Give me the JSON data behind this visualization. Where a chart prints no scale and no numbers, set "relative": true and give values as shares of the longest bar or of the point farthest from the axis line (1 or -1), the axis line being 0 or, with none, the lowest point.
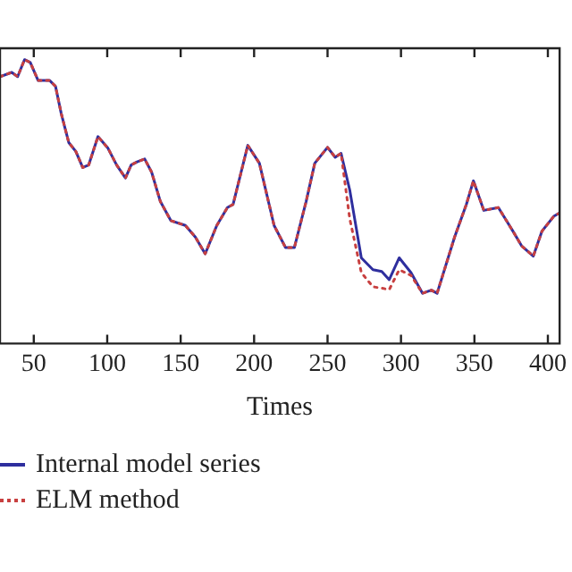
{
  "chart_data": {
    "type": "line",
    "xlabel": "Times",
    "relative": true,
    "legend": "bottom left",
    "marker": "none",
    "grid": false,
    "xlim": [
      27,
      408
    ],
    "xticks": [
      50,
      100,
      150,
      200,
      250,
      300,
      350,
      400
    ],
    "x": [
      27,
      35,
      39,
      43.7,
      47.6,
      52.9,
      60.7,
      64.8,
      68.7,
      73.8,
      78.6,
      83.3,
      87.4,
      93.7,
      100.5,
      106.4,
      112.4,
      116.3,
      120.3,
      125.5,
      130.2,
      136.2,
      143.3,
      153.2,
      160,
      166.7,
      174.6,
      181.8,
      185.7,
      195.7,
      203.6,
      213.6,
      221.4,
      227.4,
      235.4,
      241.3,
      250,
      255.2,
      259.2,
      265.1,
      273,
      280.9,
      286.9,
      292,
      298.8,
      306.8,
      314.7,
      320.7,
      324.6,
      336.5,
      344.5,
      349.3,
      356.4,
      366.3,
      376.2,
      382.1,
      390.1,
      396,
      404,
      408
    ],
    "series": [
      {
        "name": "Internal model series",
        "color": "#2e2e9e",
        "line_style": "solid",
        "values": [
          0.94,
          0.955,
          0.94,
          1.0,
          0.99,
          0.927,
          0.927,
          0.906,
          0.81,
          0.708,
          0.677,
          0.62,
          0.629,
          0.729,
          0.688,
          0.629,
          0.583,
          0.629,
          0.64,
          0.65,
          0.604,
          0.5,
          0.433,
          0.416,
          0.375,
          0.316,
          0.416,
          0.479,
          0.49,
          0.698,
          0.635,
          0.416,
          0.338,
          0.338,
          0.5,
          0.635,
          0.691,
          0.656,
          0.67,
          0.541,
          0.302,
          0.26,
          0.254,
          0.225,
          0.302,
          0.25,
          0.177,
          0.188,
          0.177,
          0.375,
          0.49,
          0.573,
          0.469,
          0.479,
          0.396,
          0.344,
          0.308,
          0.396,
          0.448,
          0.46
        ]
      },
      {
        "name": "ELM method",
        "color": "#c84040",
        "line_style": "dotted",
        "values": [
          0.94,
          0.955,
          0.94,
          1.0,
          0.99,
          0.927,
          0.927,
          0.906,
          0.81,
          0.708,
          0.677,
          0.62,
          0.629,
          0.729,
          0.688,
          0.629,
          0.583,
          0.629,
          0.64,
          0.65,
          0.604,
          0.5,
          0.433,
          0.416,
          0.375,
          0.316,
          0.416,
          0.479,
          0.49,
          0.698,
          0.635,
          0.416,
          0.338,
          0.338,
          0.5,
          0.635,
          0.691,
          0.656,
          0.67,
          0.44,
          0.25,
          0.2,
          0.195,
          0.19,
          0.26,
          0.24,
          0.177,
          0.188,
          0.177,
          0.375,
          0.49,
          0.573,
          0.469,
          0.479,
          0.396,
          0.344,
          0.308,
          0.396,
          0.448,
          0.46
        ]
      }
    ]
  }
}
